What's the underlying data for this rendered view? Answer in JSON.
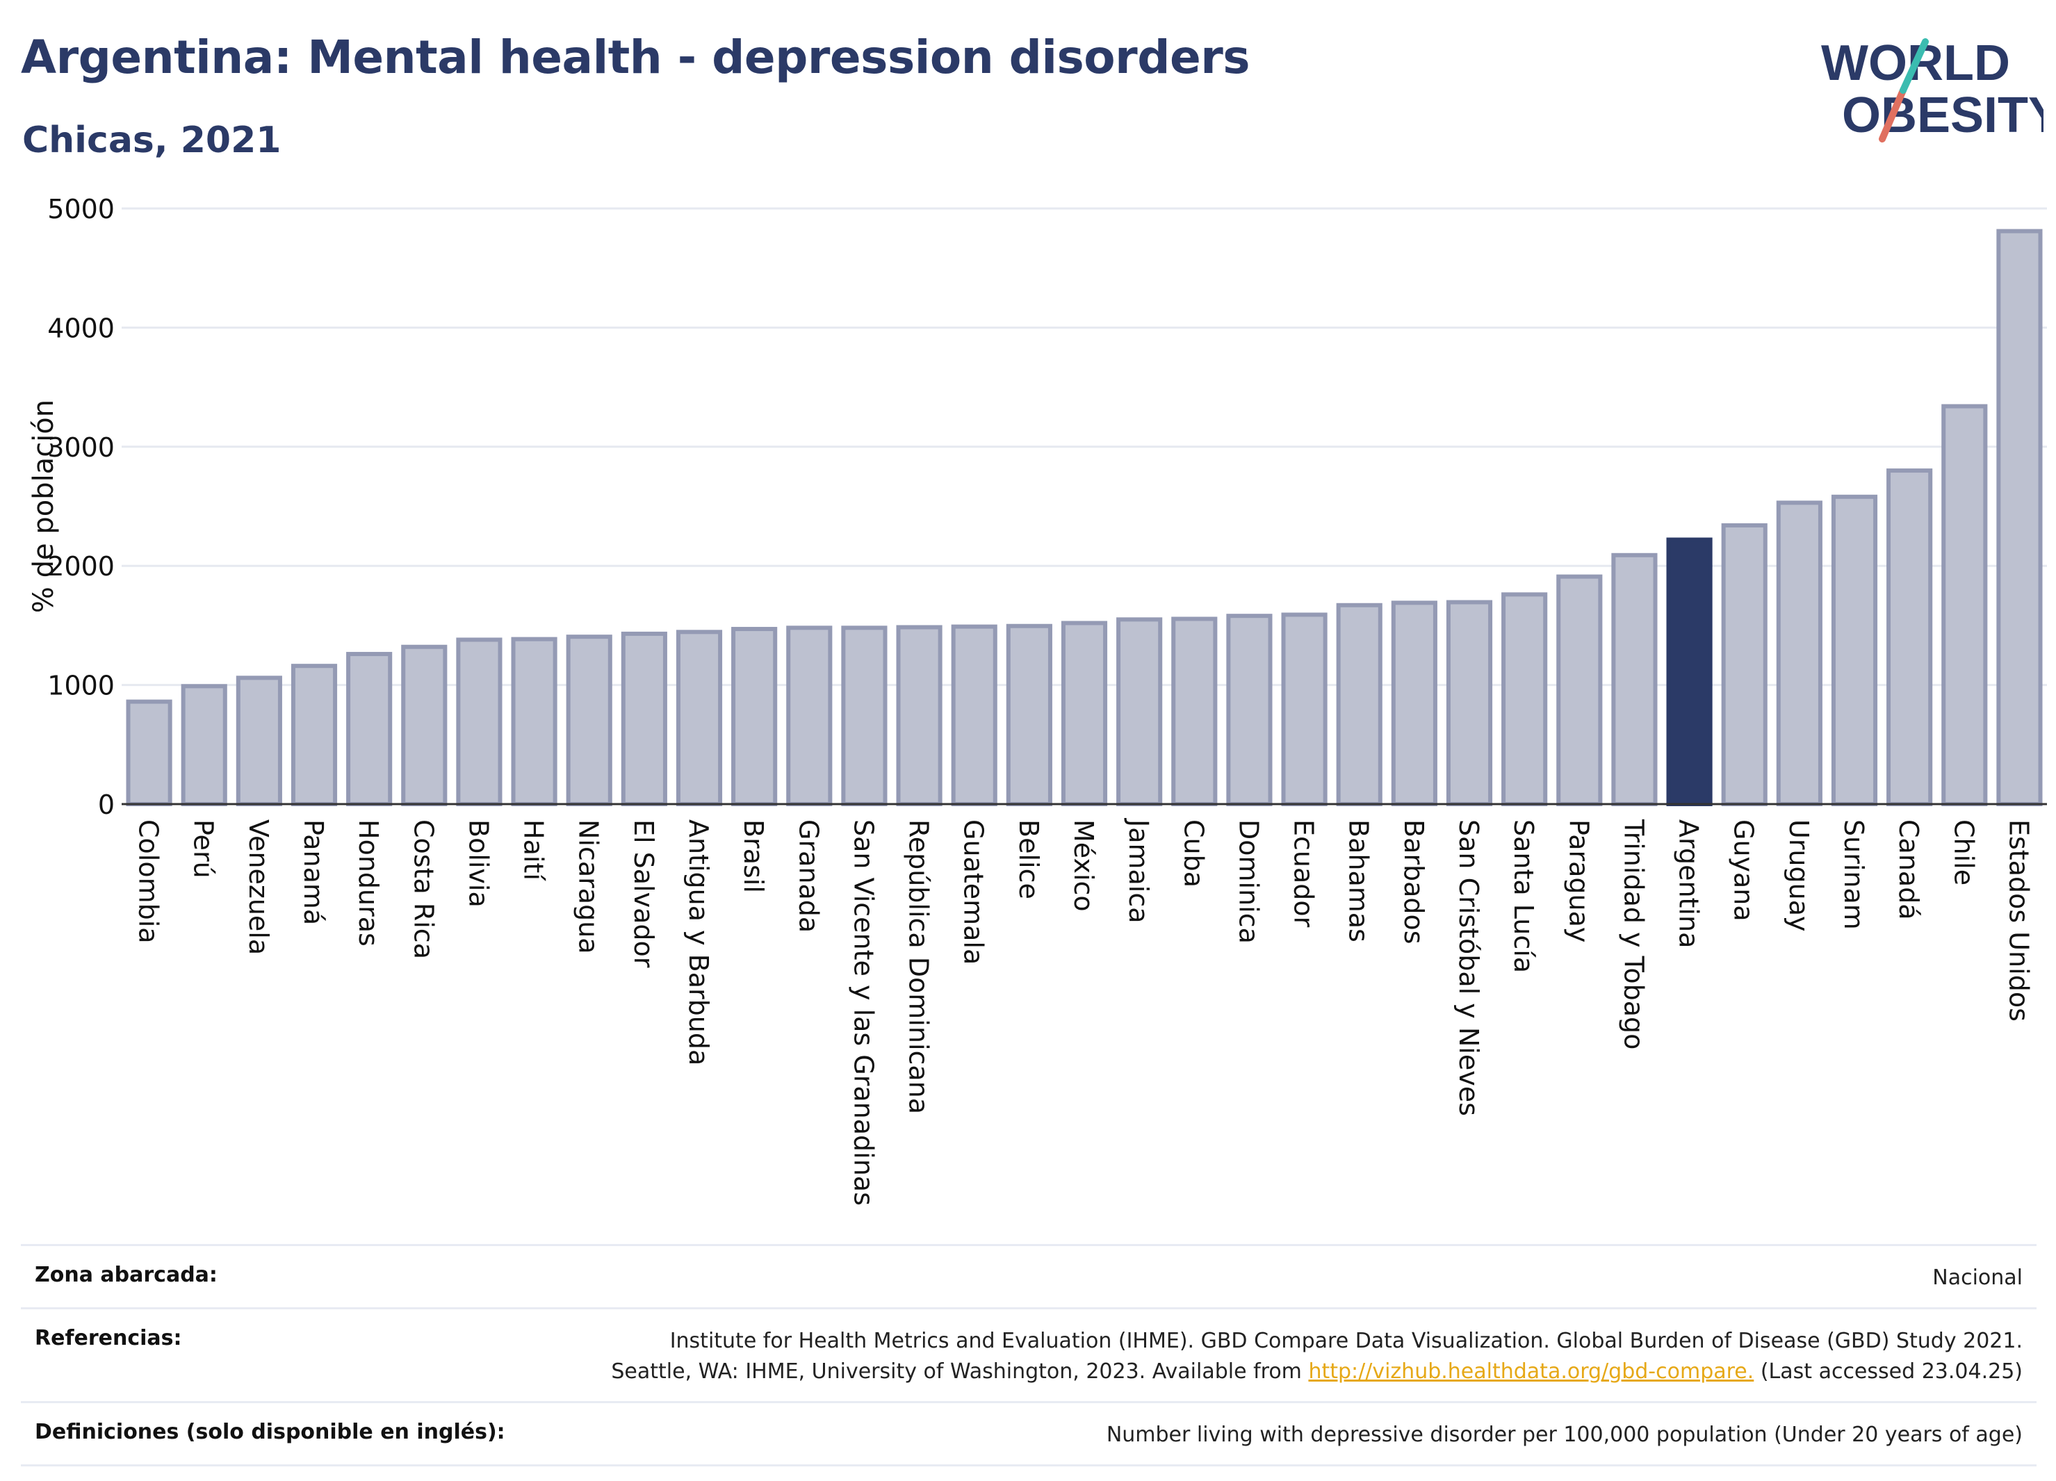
{
  "header": {
    "title": "Argentina: Mental health - depression disorders",
    "subtitle": "Chicas, 2021"
  },
  "logo": {
    "line1": "WORLD",
    "line2": "OBESITY"
  },
  "colors": {
    "title": "#2b3a67",
    "bar": "#bdc1d0",
    "bar_stroke": "#949ab4",
    "highlight": "#2b3a67",
    "grid": "#e6e9f0",
    "link": "#e6a817",
    "logo_slash_top": "#3bbcb0",
    "logo_slash_bottom": "#e07060"
  },
  "chart_data": {
    "type": "bar",
    "ylabel": "% de población",
    "xlabel": "",
    "ylim": [
      0,
      5000
    ],
    "yticks": [
      0,
      1000,
      2000,
      3000,
      4000,
      5000
    ],
    "grid": true,
    "highlight": "Argentina",
    "categories": [
      "Colombia",
      "Perú",
      "Venezuela",
      "Panamá",
      "Honduras",
      "Costa Rica",
      "Bolivia",
      "Haití",
      "Nicaragua",
      "El Salvador",
      "Antigua y Barbuda",
      "Brasil",
      "Granada",
      "San Vicente y las Granadinas",
      "República Dominicana",
      "Guatemala",
      "Belice",
      "México",
      "Jamaica",
      "Cuba",
      "Dominica",
      "Ecuador",
      "Bahamas",
      "Barbados",
      "San Cristóbal y Nieves",
      "Santa Lucía",
      "Paraguay",
      "Trinidad y Tobago",
      "Argentina",
      "Guyana",
      "Uruguay",
      "Surinam",
      "Canadá",
      "Chile",
      "Estados Unidos"
    ],
    "values": [
      860,
      990,
      1060,
      1160,
      1260,
      1320,
      1380,
      1385,
      1405,
      1430,
      1445,
      1470,
      1480,
      1480,
      1485,
      1490,
      1495,
      1520,
      1550,
      1555,
      1580,
      1590,
      1670,
      1690,
      1695,
      1760,
      1910,
      2090,
      2220,
      2340,
      2530,
      2580,
      2800,
      3340,
      4810
    ]
  },
  "footer": {
    "rows": [
      {
        "label": "Zona abarcada:",
        "lines": [
          "Nacional"
        ]
      },
      {
        "label": "Referencias:",
        "lines": [
          "Institute for Health Metrics and Evaluation (IHME). GBD Compare Data Visualization. Global Burden of Disease (GBD) Study 2021."
        ],
        "line2_prefix": "Seattle, WA: IHME, University of Washington, 2023. Available from ",
        "link": "http://vizhub.healthdata.org/gbd-compare.",
        "line2_suffix": " (Last accessed 23.04.25)"
      },
      {
        "label": "Definiciones (solo disponible en inglés):",
        "lines": [
          "Number living with depressive disorder per 100,000 population (Under 20 years of age)"
        ]
      }
    ]
  }
}
